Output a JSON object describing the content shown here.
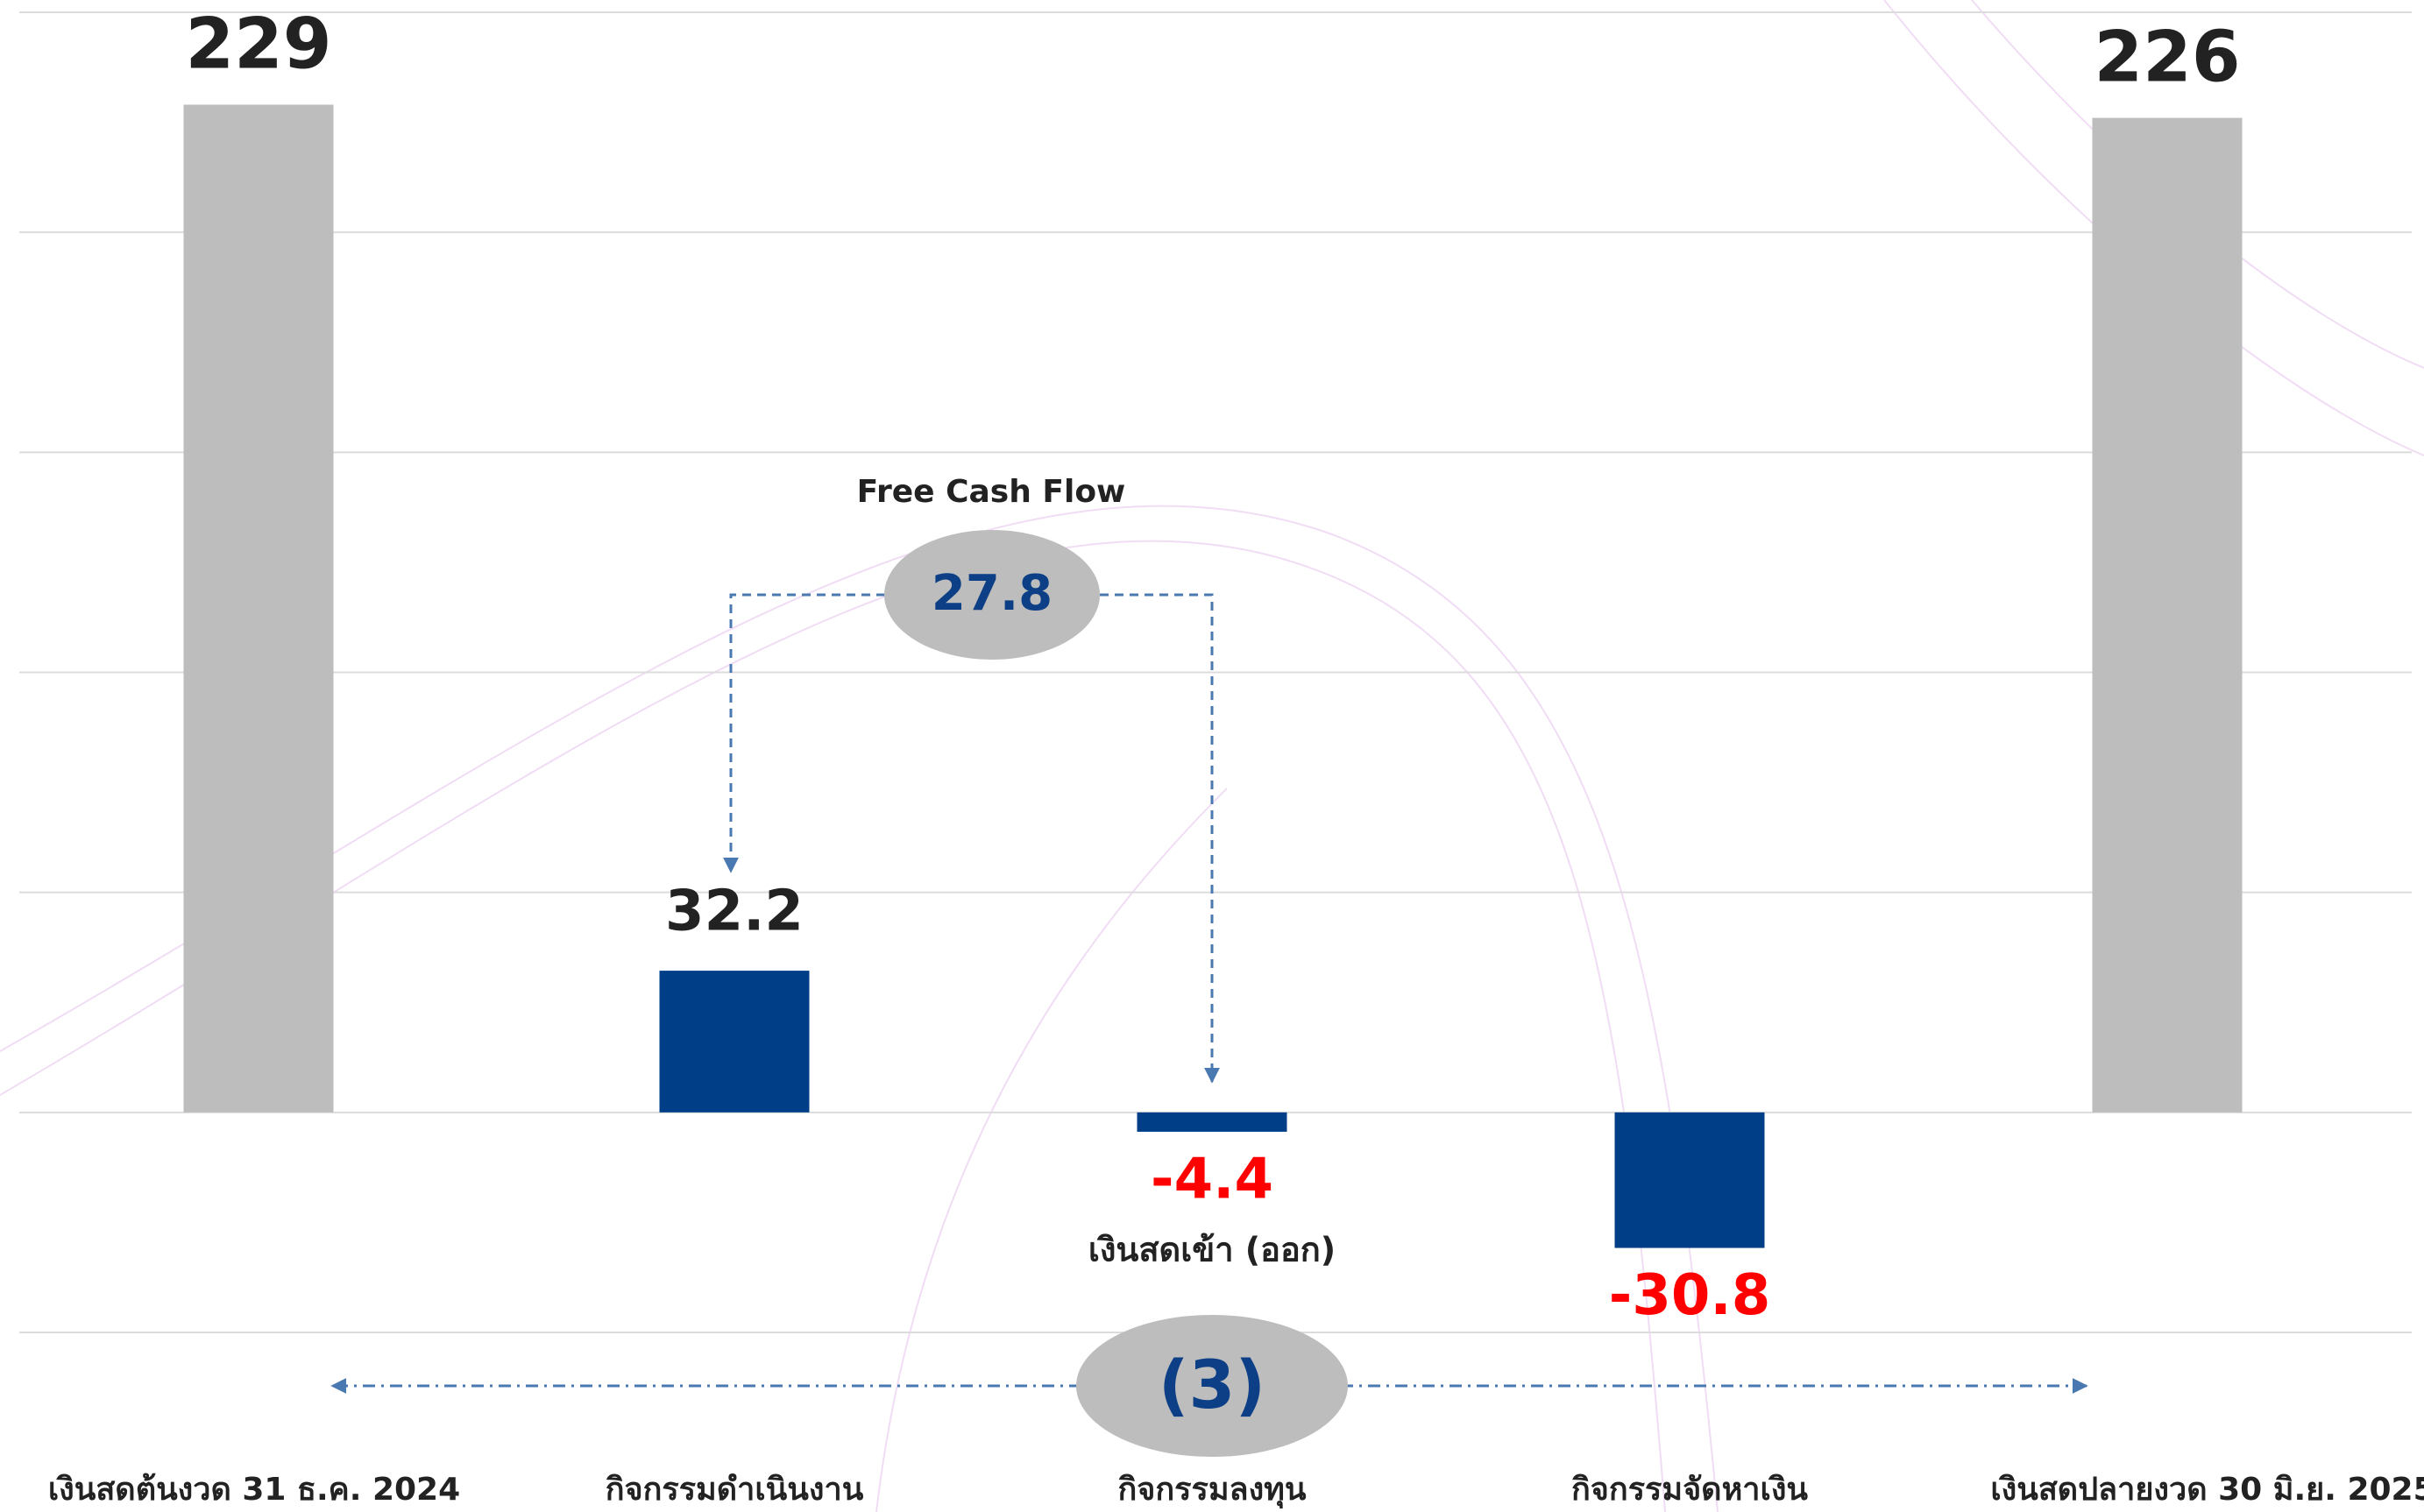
{
  "chart_data": {
    "type": "bar",
    "categories": [
      "เงินสดต้นงวด 31 ธ.ค. 2024",
      "กิจกรรมดำเนินงาน",
      "กิจกรรมลงทุน",
      "กิจกรรมจัดหาเงิน",
      "เงินสดปลายงวด 30 มิ.ย. 2025"
    ],
    "values": [
      229,
      32.2,
      -4.4,
      -30.8,
      226
    ],
    "colors": [
      "#bdbdbd",
      "#003f87",
      "#003f87",
      "#003f87",
      "#bdbdbd"
    ],
    "label_color": "#222222",
    "negative_label_color": "#ff0000",
    "ylim": [
      -50,
      250
    ],
    "yticks": [
      -50,
      0,
      50,
      100,
      150,
      200,
      250
    ],
    "grid": true,
    "annotations": {
      "free_cash_flow_label": "Free Cash Flow",
      "free_cash_flow": 27.8,
      "net_label": "เงินสดเข้า (ออก)",
      "net": "(3)"
    }
  }
}
